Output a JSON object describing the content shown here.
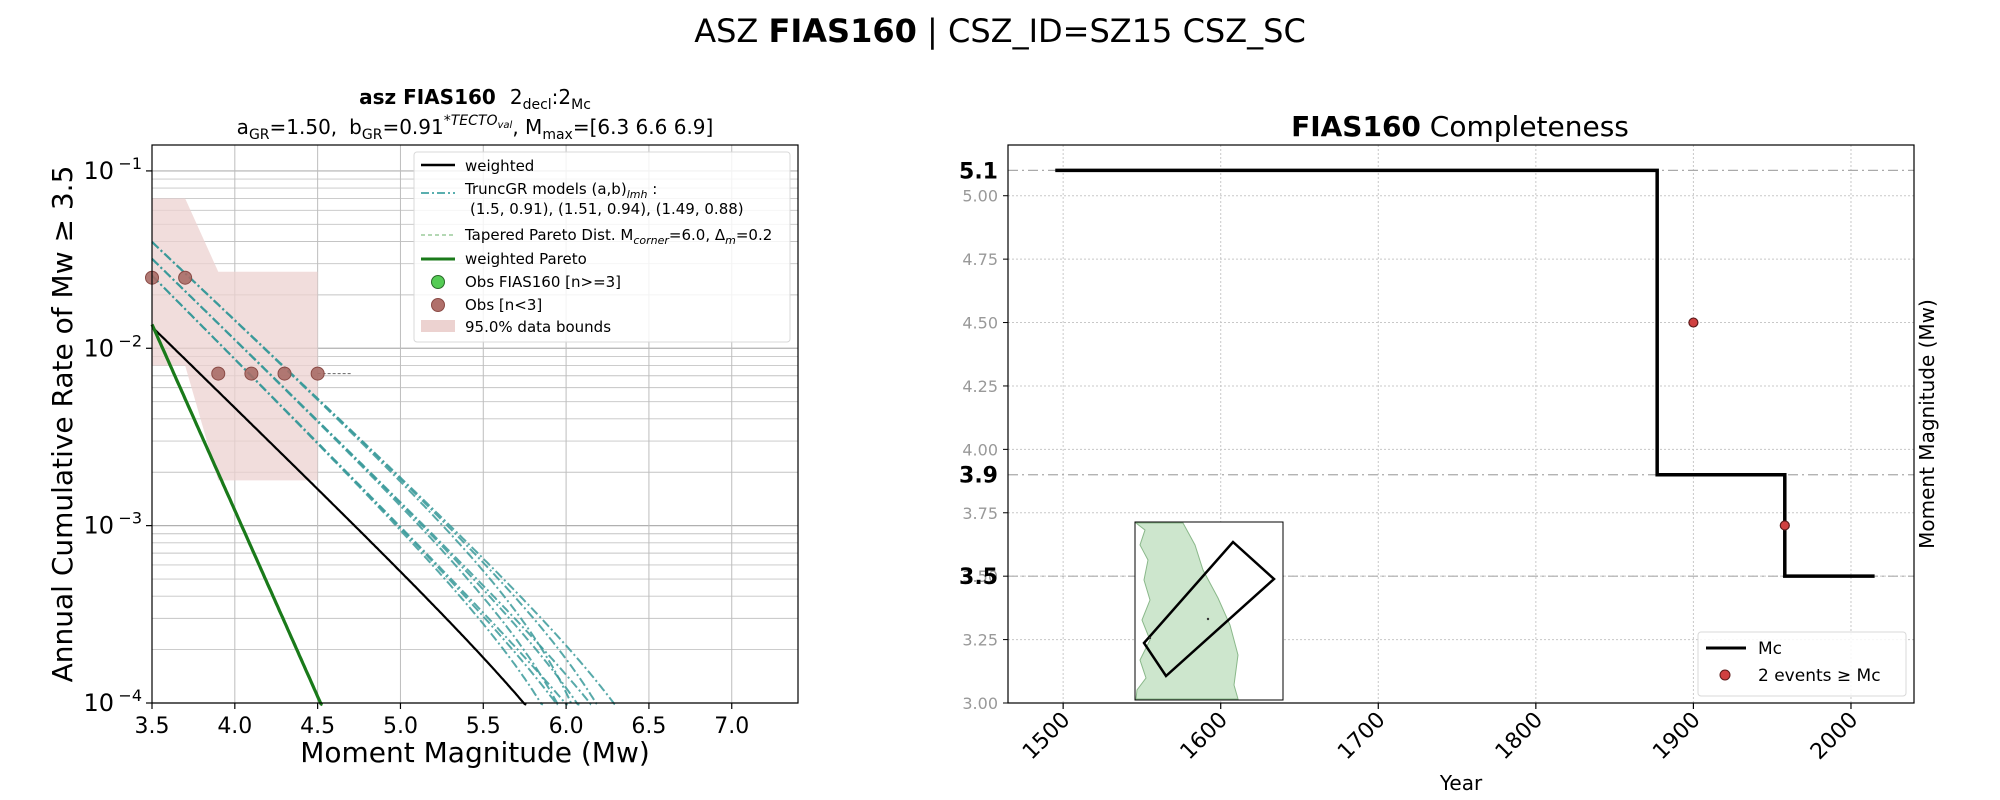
{
  "suptitle": {
    "prefix": "ASZ ",
    "bold": "FIAS160",
    "suffix": " | CSZ_ID=SZ15 CSZ_SC"
  },
  "chart_data": [
    {
      "type": "line",
      "title_line1": {
        "bold": "asz FIAS160",
        "rest": "2",
        "sub1": "decl",
        "mid": ":2",
        "sub2": "Mc"
      },
      "title_line2": {
        "a_label": "a",
        "a_sub": "GR",
        "a_val": "=1.50,",
        "b_label": "b",
        "b_sub": "GR",
        "b_val": "=0.91",
        "b_sup": "*TECTO",
        "b_supsub": "val",
        "m_label": ", M",
        "m_sub": "max",
        "m_val": "=[6.3 6.6 6.9]"
      },
      "xlabel": "Moment Magnitude (Mw)",
      "ylabel": "Annual Cumulative Rate of Mw  ≥  3.5",
      "xlim": [
        3.5,
        7.4
      ],
      "ylim": [
        0.0001,
        0.14
      ],
      "yscale": "log",
      "x_ticks": [
        "3.5",
        "4.0",
        "4.5",
        "5.0",
        "5.5",
        "6.0",
        "6.5",
        "7.0"
      ],
      "y_ticks": [
        {
          "base": "10",
          "exp": "−1",
          "value": 0.1
        },
        {
          "base": "10",
          "exp": "−2",
          "value": 0.01
        },
        {
          "base": "10",
          "exp": "−3",
          "value": 0.001
        },
        {
          "base": "10",
          "exp": "−4",
          "value": 0.0001
        }
      ],
      "grid": true,
      "legend_position": "top-right",
      "legend": [
        {
          "label": "weighted",
          "style": "solid-black"
        },
        {
          "label": "TruncGR models (a,b)",
          "label_sub": "lmh",
          "label_tail": " :",
          "label2": "(1.5, 0.91), (1.51, 0.94), (1.49, 0.88)",
          "style": "dashdot-teal"
        },
        {
          "label": "Tapered Pareto Dist. M",
          "label_sub": "corner",
          "label_tail": "=6.0, Δ",
          "label_sub2": "m",
          "label_tail2": "=0.2",
          "style": "dashed-lightgreen"
        },
        {
          "label": "weighted Pareto",
          "style": "solid-green"
        },
        {
          "label": "Obs FIAS160 [n>=3]",
          "style": "marker-green"
        },
        {
          "label": "Obs [n<3]",
          "style": "marker-brown"
        },
        {
          "label": "95.0% data bounds",
          "style": "patch-pink"
        }
      ],
      "observations": [
        {
          "x": 3.5,
          "y": 0.025
        },
        {
          "x": 3.7,
          "y": 0.025
        },
        {
          "x": 3.9,
          "y": 0.0072
        },
        {
          "x": 4.1,
          "y": 0.0072
        },
        {
          "x": 4.3,
          "y": 0.0072
        },
        {
          "x": 4.5,
          "y": 0.0072
        }
      ],
      "bounds": {
        "x": [
          3.5,
          3.7,
          3.7,
          3.9,
          3.9,
          4.1,
          4.1,
          4.3,
          4.3,
          4.5,
          4.5
        ],
        "upper": [
          0.07,
          0.07,
          0.07,
          0.027,
          0.027,
          0.027,
          0.027,
          0.027,
          0.027,
          0.027,
          0.027
        ],
        "lower": [
          0.008,
          0.008,
          0.008,
          0.0018,
          0.0018,
          0.0018,
          0.0018,
          0.0018,
          0.0018,
          0.0018,
          0.0018
        ]
      },
      "series": [
        {
          "style": "trunc",
          "mmax": 6.3,
          "a": 1.5,
          "b": 0.91
        },
        {
          "style": "trunc",
          "mmax": 6.6,
          "a": 1.5,
          "b": 0.91
        },
        {
          "style": "trunc",
          "mmax": 6.9,
          "a": 1.5,
          "b": 0.91
        },
        {
          "style": "trunc",
          "mmax": 6.3,
          "a": 1.51,
          "b": 0.94
        },
        {
          "style": "trunc",
          "mmax": 6.6,
          "a": 1.51,
          "b": 0.94
        },
        {
          "style": "trunc",
          "mmax": 6.9,
          "a": 1.51,
          "b": 0.94
        },
        {
          "style": "trunc",
          "mmax": 6.3,
          "a": 1.49,
          "b": 0.88
        },
        {
          "style": "trunc",
          "mmax": 6.6,
          "a": 1.49,
          "b": 0.88
        },
        {
          "style": "trunc",
          "mmax": 6.9,
          "a": 1.49,
          "b": 0.88
        },
        {
          "style": "weighted",
          "mmax": 6.6,
          "a": 1.5,
          "b": 0.91
        },
        {
          "style": "pareto",
          "mcorner": 6.0,
          "a": 1.5,
          "b": 0.91
        }
      ],
      "obs_dashes": {
        "x": [
          4.5,
          4.7
        ],
        "y": 0.0072
      },
      "colors": {
        "trunc": "#3a9a9a",
        "weighted": "#000000",
        "pareto": "#1a7a1a",
        "obs_face": "#a86b66",
        "obs_edge": "#8a4a45",
        "obs_green": "#55cc55",
        "bounds": "#ecd2d0"
      }
    },
    {
      "type": "step",
      "title_bold": "FIAS160",
      "title_rest": " Completeness",
      "xlabel": "Year",
      "ylabel": "Moment Magnitude (Mw)",
      "xlim": [
        1465,
        2040
      ],
      "ylim": [
        3.0,
        5.2
      ],
      "x_ticks": [
        "1500",
        "1600",
        "1700",
        "1800",
        "1900",
        "2000"
      ],
      "y_ticks": [
        "3.00",
        "3.25",
        "3.50",
        "3.75",
        "4.00",
        "4.25",
        "4.50",
        "4.75",
        "5.00"
      ],
      "y_ticks_minor_grey": true,
      "mc_labels": [
        "5.1",
        "3.9",
        "3.5"
      ],
      "mc_levels": [
        5.1,
        3.9,
        3.5
      ],
      "step": {
        "x": [
          1495,
          1877,
          1877,
          1958,
          1958,
          2015
        ],
        "y": [
          5.1,
          5.1,
          3.9,
          3.9,
          3.5,
          3.5
        ]
      },
      "events": [
        {
          "x": 1900,
          "y": 4.5
        },
        {
          "x": 1958,
          "y": 3.7
        }
      ],
      "legend_position": "bottom-right",
      "legend": [
        {
          "label": "Mc",
          "style": "line-black"
        },
        {
          "label": "2 events  ≥  Mc",
          "style": "marker-red"
        }
      ],
      "colors": {
        "step": "#000000",
        "event_face": "#d04040",
        "event_edge": "#5a1a1a",
        "inset_land": "#cde6cd",
        "inset_coast": "#7aaa7a"
      }
    }
  ]
}
